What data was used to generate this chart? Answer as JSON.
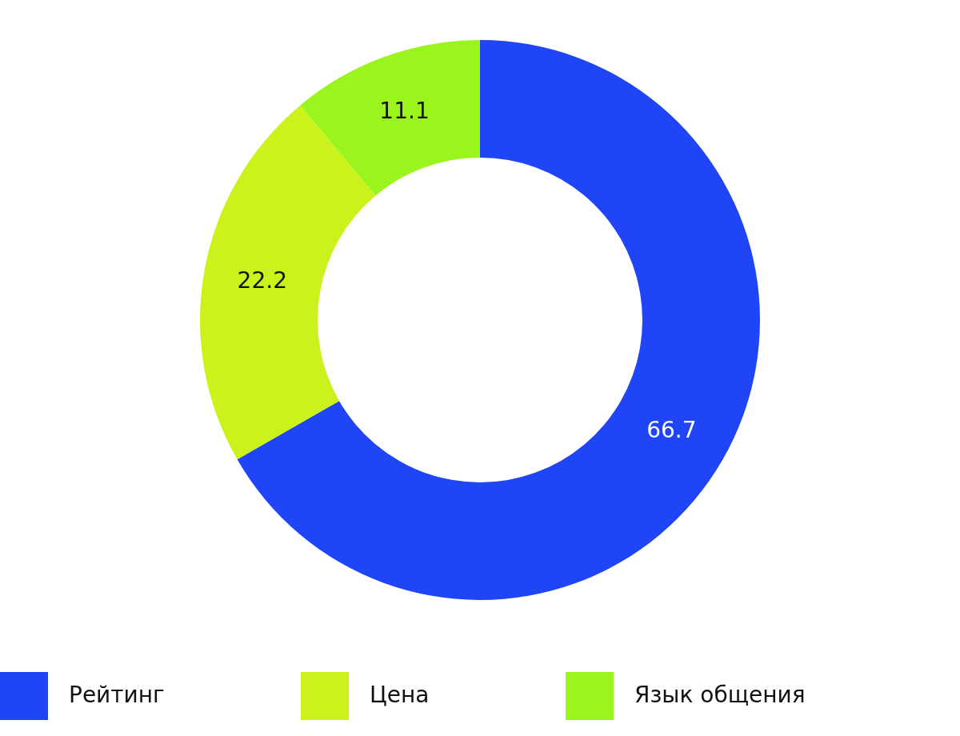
{
  "chart_data": {
    "type": "donut",
    "categories": [
      "Рейтинг",
      "Цена",
      "Язык общения"
    ],
    "values": [
      66.7,
      22.2,
      11.1
    ],
    "colors": [
      "#1f45f7",
      "#ccf21c",
      "#9af51c"
    ],
    "data_labels": true,
    "legend": "bottom"
  }
}
